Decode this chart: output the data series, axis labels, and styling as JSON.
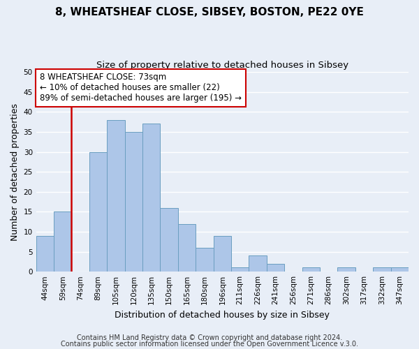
{
  "title": "8, WHEATSHEAF CLOSE, SIBSEY, BOSTON, PE22 0YE",
  "subtitle": "Size of property relative to detached houses in Sibsey",
  "xlabel": "Distribution of detached houses by size in Sibsey",
  "ylabel": "Number of detached properties",
  "bar_labels": [
    "44sqm",
    "59sqm",
    "74sqm",
    "89sqm",
    "105sqm",
    "120sqm",
    "135sqm",
    "150sqm",
    "165sqm",
    "180sqm",
    "196sqm",
    "211sqm",
    "226sqm",
    "241sqm",
    "256sqm",
    "271sqm",
    "286sqm",
    "302sqm",
    "317sqm",
    "332sqm",
    "347sqm"
  ],
  "bar_values": [
    9,
    15,
    0,
    30,
    38,
    35,
    37,
    16,
    12,
    6,
    9,
    1,
    4,
    2,
    0,
    1,
    0,
    1,
    0,
    1,
    1
  ],
  "bar_color": "#adc6e8",
  "bar_edge_color": "#6a9ec0",
  "vline_index": 2,
  "vline_color": "#cc0000",
  "ylim": [
    0,
    50
  ],
  "yticks": [
    0,
    5,
    10,
    15,
    20,
    25,
    30,
    35,
    40,
    45,
    50
  ],
  "annotation_title": "8 WHEATSHEAF CLOSE: 73sqm",
  "annotation_line1": "← 10% of detached houses are smaller (22)",
  "annotation_line2": "89% of semi-detached houses are larger (195) →",
  "annotation_box_color": "#ffffff",
  "annotation_box_edge": "#cc0000",
  "footer1": "Contains HM Land Registry data © Crown copyright and database right 2024.",
  "footer2": "Contains public sector information licensed under the Open Government Licence v.3.0.",
  "bg_color": "#e8eef7",
  "grid_color": "#ffffff",
  "title_fontsize": 11,
  "subtitle_fontsize": 9.5,
  "label_fontsize": 9,
  "tick_fontsize": 7.5,
  "annotation_fontsize": 8.5,
  "footer_fontsize": 7
}
